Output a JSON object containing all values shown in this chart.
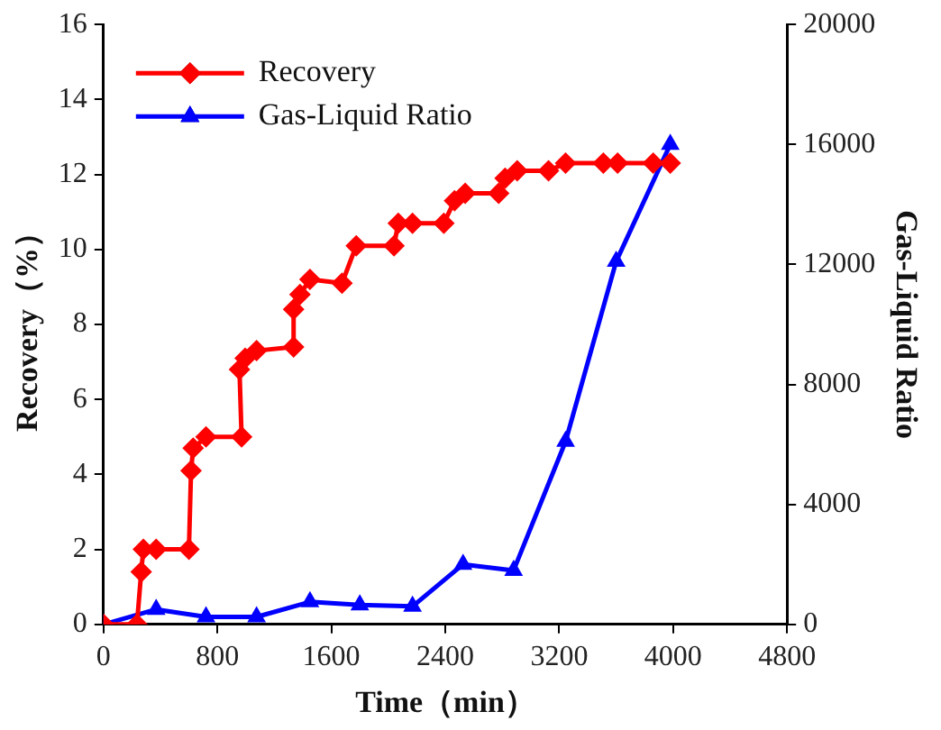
{
  "chart_data": {
    "type": "line",
    "xlabel": "Time（min）",
    "ylabel": "Recovery（%）",
    "y2label": "Gas-Liquid Ratio",
    "xlim": [
      0,
      4800
    ],
    "xticks": [
      0,
      800,
      1600,
      2400,
      3200,
      4000,
      4800
    ],
    "ylim": [
      0,
      16
    ],
    "yticks": [
      0,
      2,
      4,
      6,
      8,
      10,
      12,
      14,
      16
    ],
    "y2lim": [
      0,
      20000
    ],
    "y2ticks": [
      0,
      4000,
      8000,
      12000,
      16000,
      20000
    ],
    "grid": false,
    "legend": "top left",
    "line_style": "solid",
    "series": [
      {
        "name": "Recovery",
        "color": "#ff0000",
        "marker": "diamond",
        "x": [
          0,
          235,
          265,
          280,
          370,
          600,
          615,
          630,
          720,
          970,
          955,
          995,
          1075,
          1335,
          1335,
          1380,
          1450,
          1675,
          1775,
          2040,
          2070,
          2170,
          2390,
          2465,
          2540,
          2775,
          2820,
          2905,
          3125,
          3245,
          3510,
          3610,
          3860,
          3980
        ],
        "values": [
          0,
          0,
          1.4,
          2,
          2,
          2,
          4.1,
          4.7,
          5,
          5,
          6.8,
          7.1,
          7.3,
          7.4,
          8.4,
          8.8,
          9.2,
          9.1,
          10.1,
          10.1,
          10.7,
          10.7,
          10.7,
          11.3,
          11.5,
          11.5,
          11.9,
          12.1,
          12.1,
          12.3,
          12.3,
          12.3,
          12.3,
          12.3
        ]
      },
      {
        "name": "Gas-Liquid Ratio",
        "color": "#0000ff",
        "marker": "triangle",
        "axis": "y2",
        "x": [
          0,
          370,
          720,
          1075,
          1450,
          1800,
          2170,
          2525,
          2880,
          3245,
          3600,
          3980
        ],
        "values": [
          0,
          500,
          250,
          250,
          750,
          650,
          600,
          2000,
          1800,
          6100,
          12100,
          16000
        ]
      }
    ]
  }
}
